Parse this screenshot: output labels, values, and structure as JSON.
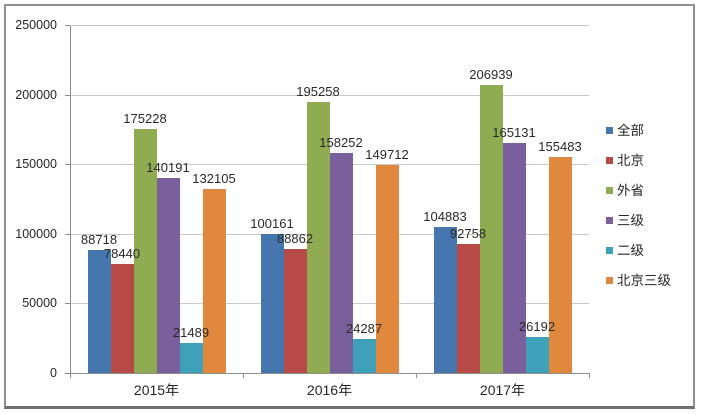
{
  "chart_data": {
    "type": "bar",
    "title": "",
    "categories": [
      "2015年",
      "2016年",
      "2017年"
    ],
    "series": [
      {
        "name": "全部",
        "color": "#4577ae",
        "values": [
          88718,
          100161,
          104883
        ]
      },
      {
        "name": "北京",
        "color": "#b84a47",
        "values": [
          78440,
          88862,
          92758
        ]
      },
      {
        "name": "外省",
        "color": "#8fac52",
        "values": [
          175228,
          195258,
          206939
        ]
      },
      {
        "name": "三级",
        "color": "#7a5f9d",
        "values": [
          140191,
          158252,
          165131
        ]
      },
      {
        "name": "二级",
        "color": "#3fa0ba",
        "values": [
          21489,
          24287,
          26192
        ]
      },
      {
        "name": "北京三级",
        "color": "#e0883e",
        "values": [
          132105,
          149712,
          155483
        ]
      }
    ],
    "ylim": [
      0,
      250000
    ],
    "yticks": [
      0,
      50000,
      100000,
      150000,
      200000,
      250000
    ],
    "grid": true,
    "legend_position": "right",
    "data_labels": true,
    "bar_gap_ratio": 1.5
  },
  "style": {
    "gridline_color": "#c9c9c9",
    "axis_color": "#8f8f8f",
    "text_color": "#262626",
    "frame_border_color": "#8f8f8f",
    "background": "#ffffff"
  }
}
